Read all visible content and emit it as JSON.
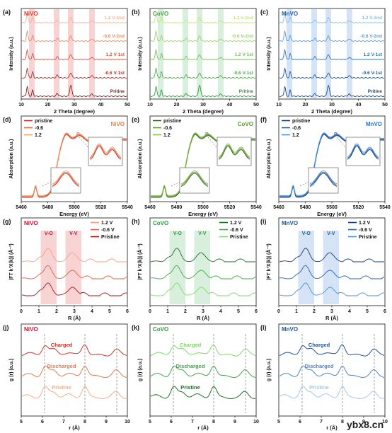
{
  "figure": {
    "watermark": "ybx8.cn",
    "row_a": {
      "ylabel": "Intensity (a.u.)",
      "xlabel": "2 Theta (degree)",
      "xticks": [
        "10",
        "20",
        "30",
        "40",
        "50"
      ],
      "panels": [
        {
          "letter": "(a)",
          "sample": "NiVO",
          "color": "#e23a2a",
          "band_color": "#f6c4c6",
          "traces": [
            "1.2 V-2nd",
            "-0.6 V-2nd",
            "1.2 V-1st",
            "-0.6 V-1st",
            "Pritine"
          ],
          "trace_colors": [
            "#f2b49a",
            "#ee8a60",
            "#d9543a",
            "#b83028",
            "#8a1c1c"
          ]
        },
        {
          "letter": "(b)",
          "sample": "CoVO",
          "color": "#3da641",
          "band_color": "#c9ead0",
          "traces": [
            "1.2 V-2nd",
            "-0.6 V-2nd",
            "1.2 V-1st",
            "-0.6 V-1st",
            "Pritine"
          ],
          "trace_colors": [
            "#c4e67a",
            "#9ed26a",
            "#73c257",
            "#4fb047",
            "#2e9a3a"
          ]
        },
        {
          "letter": "(c)",
          "sample": "MnVO",
          "color": "#1e63b8",
          "band_color": "#c7daf3",
          "traces": [
            "1.2 V-2nd",
            "-0.6 V-2nd",
            "1.2 V-1st",
            "-0.6 V-1st",
            "Pritine"
          ],
          "trace_colors": [
            "#8cbde8",
            "#5b9bd8",
            "#2f75c4",
            "#1c5aa8",
            "#144a8c"
          ]
        }
      ]
    },
    "row_d": {
      "ylabel": "Absorption (a.u.)",
      "xlabel": "Energy (eV)",
      "xticks": [
        "5460",
        "5480",
        "5500",
        "5520",
        "5540"
      ],
      "peak_label": "B",
      "panels": [
        {
          "letter": "(d)",
          "sample": "NiVO",
          "color": "#f07f4a",
          "legend": [
            "pristine",
            "-0.6",
            "1.2"
          ],
          "legend_colors": [
            "#c03028",
            "#e8663e",
            "#f3a26e"
          ]
        },
        {
          "letter": "(e)",
          "sample": "CoVO",
          "color": "#5a9a2e",
          "legend": [
            "pristine",
            "-0.6",
            "1.2"
          ],
          "legend_colors": [
            "#2f5a1c",
            "#5f9a2e",
            "#86bc4a"
          ]
        },
        {
          "letter": "(f)",
          "sample": "MnVO",
          "color": "#2a74c8",
          "legend": [
            "pristine",
            "-0.6",
            "1.2"
          ],
          "legend_colors": [
            "#153a72",
            "#1f5faa",
            "#4d93dc"
          ]
        }
      ]
    },
    "row_g": {
      "ylabel": "|FT k³X(k)| (Å⁻³)",
      "xlabel": "R (Å)",
      "xticks": [
        "0",
        "1",
        "2",
        "3",
        "4",
        "5",
        "6"
      ],
      "band_labels": [
        "V-O",
        "V-V"
      ],
      "panels": [
        {
          "letter": "(g)",
          "sample": "NiVO",
          "color": "#c8102e",
          "band_color": "#f6c4c6",
          "legend": [
            "1.2 V",
            "-0.6 V",
            "Pristine"
          ],
          "legend_colors": [
            "#f0a080",
            "#e2603e",
            "#a21818"
          ]
        },
        {
          "letter": "(h)",
          "sample": "CoVO",
          "color": "#2e9a3a",
          "band_color": "#c9ead0",
          "legend": [
            "1.2 V",
            "-0.6 V",
            "Pristine"
          ],
          "legend_colors": [
            "#1f6e28",
            "#44a84a",
            "#7ed86a"
          ]
        },
        {
          "letter": "(i)",
          "sample": "MnVO",
          "color": "#1e5a9c",
          "band_color": "#c7daf3",
          "legend": [
            "1.2 V",
            "-0.6 V",
            "Pristine"
          ],
          "legend_colors": [
            "#153a72",
            "#2a5fa8",
            "#4f8fd0"
          ]
        }
      ]
    },
    "row_j": {
      "ylabel": "g (r) (a.u.)",
      "xlabel": "r (Å)",
      "xticks": [
        "5",
        "6",
        "7",
        "8",
        "9",
        "10"
      ],
      "panels": [
        {
          "letter": "(j)",
          "sample": "NiVO",
          "color": "#c8102e",
          "curves": [
            "Charged",
            "Discharged",
            "Pristine"
          ],
          "curve_colors": [
            "#c8342a",
            "#e07a4e",
            "#f0b088"
          ]
        },
        {
          "letter": "(k)",
          "sample": "CoVO",
          "color": "#2e9a3a",
          "curves": [
            "Charged",
            "Discharged",
            "Pristine"
          ],
          "curve_colors": [
            "#7ed86a",
            "#3fa548",
            "#1f6e28"
          ]
        },
        {
          "letter": "(l)",
          "sample": "MnVO",
          "color": "#1e5a9c",
          "curves": [
            "Charged",
            "Discharged",
            "Pristine"
          ],
          "curve_colors": [
            "#1e4f96",
            "#4d86cc",
            "#a5c6ea"
          ]
        }
      ]
    }
  }
}
